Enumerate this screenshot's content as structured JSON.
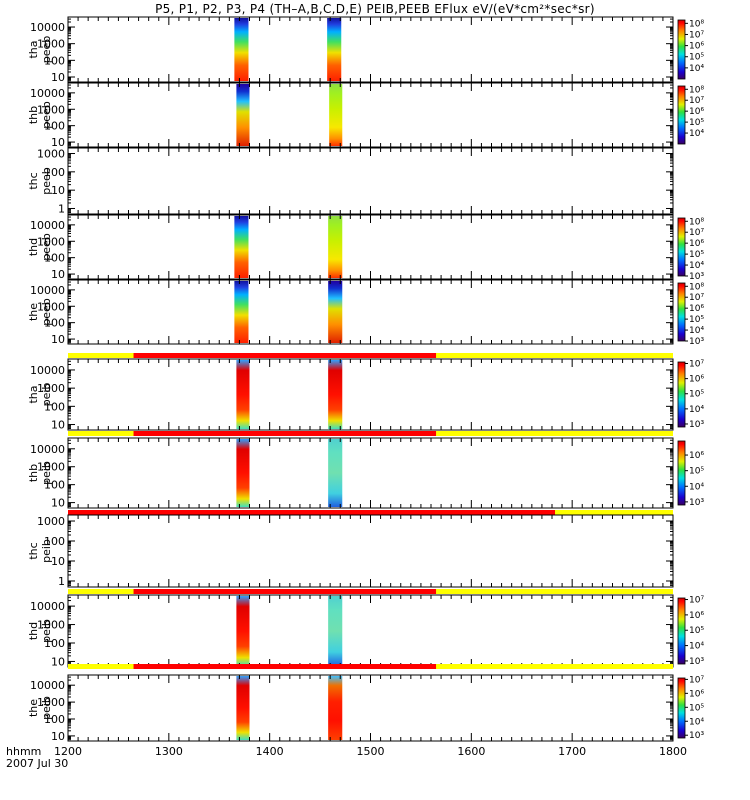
{
  "title": "P5, P1, P2, P3, P4 (TH–A,B,C,D,E) PEIB,PEEB EFlux eV/(eV*cm²*sec*sr)",
  "footer": {
    "hhmm_label": "hhmm",
    "date_label": "2007 Jul 30"
  },
  "colors": {
    "on": "#ff0000",
    "off": "#ffff00"
  },
  "chart_data": {
    "type": "heatmap",
    "xlabel": "hhmm",
    "xlim": [
      1200,
      1800
    ],
    "xticks": [
      1200,
      1300,
      1400,
      1500,
      1600,
      1700,
      1800
    ],
    "xtick_labels": [
      "1200",
      "1300",
      "1400",
      "1500",
      "1600",
      "1700",
      "1800"
    ],
    "panels": [
      {
        "id": "tha-peeb",
        "label_line1": "tha",
        "label_line2": "peeb",
        "ylim": [
          5,
          40000
        ],
        "ylog": true,
        "yticks": [
          10,
          100,
          1000,
          10000
        ],
        "ytick_labels": [
          "10",
          "100",
          "1000",
          "10000"
        ],
        "colorbar": {
          "range": [
            3,
            8.3
          ],
          "ticks": [
            4,
            5,
            6,
            7,
            8
          ],
          "labels": [
            "10⁴",
            "10⁵",
            "10⁶",
            "10⁷",
            "10⁸"
          ]
        },
        "blocks": [
          {
            "x0": 1365,
            "x1": 1379,
            "style": "warm"
          },
          {
            "x0": 1457,
            "x1": 1471,
            "style": "warm"
          }
        ]
      },
      {
        "id": "thb-peeb",
        "label_line1": "thb",
        "label_line2": "peeb",
        "ylim": [
          5,
          40000
        ],
        "ylog": true,
        "yticks": [
          10,
          100,
          1000,
          10000
        ],
        "ytick_labels": [
          "10",
          "100",
          "1000",
          "10000"
        ],
        "colorbar": {
          "range": [
            3,
            8.3
          ],
          "ticks": [
            4,
            5,
            6,
            7,
            8
          ],
          "labels": [
            "10⁴",
            "10⁵",
            "10⁶",
            "10⁷",
            "10⁸"
          ]
        },
        "blocks": [
          {
            "x0": 1367,
            "x1": 1380,
            "style": "mixed"
          },
          {
            "x0": 1459,
            "x1": 1472,
            "style": "yellow"
          }
        ]
      },
      {
        "id": "thc-peeb",
        "label_line1": "thc",
        "label_line2": "peeb",
        "ylim": [
          0.5,
          2000
        ],
        "ylog": true,
        "yticks": [
          1,
          10,
          100,
          1000
        ],
        "ytick_labels": [
          "1",
          "10",
          "100",
          "1000"
        ],
        "colorbar": null,
        "blocks": []
      },
      {
        "id": "thd-peeb",
        "label_line1": "thd",
        "label_line2": "peeb",
        "ylim": [
          5,
          40000
        ],
        "ylog": true,
        "yticks": [
          10,
          100,
          1000,
          10000
        ],
        "ytick_labels": [
          "10",
          "100",
          "1000",
          "10000"
        ],
        "colorbar": {
          "range": [
            3,
            8.3
          ],
          "ticks": [
            3,
            4,
            5,
            6,
            7,
            8
          ],
          "labels": [
            "10³",
            "10⁴",
            "10⁵",
            "10⁶",
            "10⁷",
            "10⁸"
          ]
        },
        "blocks": [
          {
            "x0": 1365,
            "x1": 1379,
            "style": "warm"
          },
          {
            "x0": 1458,
            "x1": 1472,
            "style": "yellow"
          }
        ]
      },
      {
        "id": "the-peeb",
        "label_line1": "the",
        "label_line2": "peeb",
        "ylim": [
          5,
          40000
        ],
        "ylog": true,
        "yticks": [
          10,
          100,
          1000,
          10000
        ],
        "ytick_labels": [
          "10",
          "100",
          "1000",
          "10000"
        ],
        "colorbar": {
          "range": [
            3,
            8.3
          ],
          "ticks": [
            3,
            4,
            5,
            6,
            7,
            8
          ],
          "labels": [
            "10³",
            "10⁴",
            "10⁵",
            "10⁶",
            "10⁷",
            "10⁸"
          ]
        },
        "blocks": [
          {
            "x0": 1365,
            "x1": 1379,
            "style": "warm"
          },
          {
            "x0": 1458,
            "x1": 1472,
            "style": "mixed"
          }
        ]
      },
      {
        "id": "tha-peib",
        "label_line1": "tha",
        "label_line2": "peib",
        "ylim": [
          5,
          40000
        ],
        "ylog": true,
        "yticks": [
          10,
          100,
          1000,
          10000
        ],
        "ytick_labels": [
          "10",
          "100",
          "1000",
          "10000"
        ],
        "colorbar": {
          "range": [
            2.8,
            7.1
          ],
          "ticks": [
            3,
            4,
            5,
            6,
            7
          ],
          "labels": [
            "10³",
            "10⁴",
            "10⁵",
            "10⁶",
            "10⁷"
          ]
        },
        "mode_bar": {
          "on_start": 1265,
          "on_end": 1565
        },
        "blocks": [
          {
            "x0": 1367,
            "x1": 1380,
            "style": "red"
          },
          {
            "x0": 1458,
            "x1": 1472,
            "style": "red"
          }
        ]
      },
      {
        "id": "thb-peib",
        "label_line1": "thb",
        "label_line2": "peib",
        "ylim": [
          5,
          40000
        ],
        "ylog": true,
        "yticks": [
          10,
          100,
          1000,
          10000
        ],
        "ytick_labels": [
          "10",
          "100",
          "1000",
          "10000"
        ],
        "colorbar": {
          "range": [
            2.8,
            6.9
          ],
          "ticks": [
            3,
            4,
            5,
            6
          ],
          "labels": [
            "10³",
            "10⁴",
            "10⁵",
            "10⁶"
          ]
        },
        "mode_bar": {
          "on_start": 1265,
          "on_end": 1565
        },
        "blocks": [
          {
            "x0": 1367,
            "x1": 1380,
            "style": "red"
          },
          {
            "x0": 1458,
            "x1": 1472,
            "style": "cyan"
          }
        ]
      },
      {
        "id": "thc-peib",
        "label_line1": "thc",
        "label_line2": "peib",
        "ylim": [
          0.5,
          2000
        ],
        "ylog": true,
        "yticks": [
          1,
          10,
          100,
          1000
        ],
        "ytick_labels": [
          "1",
          "10",
          "100",
          "1000"
        ],
        "colorbar": null,
        "mode_bar": {
          "on_start": 1200,
          "on_end": 1683
        },
        "blocks": []
      },
      {
        "id": "thd-peib",
        "label_line1": "thd",
        "label_line2": "peib",
        "ylim": [
          5,
          40000
        ],
        "ylog": true,
        "yticks": [
          10,
          100,
          1000,
          10000
        ],
        "ytick_labels": [
          "10",
          "100",
          "1000",
          "10000"
        ],
        "colorbar": {
          "range": [
            2.8,
            7.1
          ],
          "ticks": [
            3,
            4,
            5,
            6,
            7
          ],
          "labels": [
            "10³",
            "10⁴",
            "10⁵",
            "10⁶",
            "10⁷"
          ]
        },
        "mode_bar": {
          "on_start": 1265,
          "on_end": 1565
        },
        "blocks": [
          {
            "x0": 1367,
            "x1": 1380,
            "style": "red"
          },
          {
            "x0": 1458,
            "x1": 1472,
            "style": "cyan"
          }
        ]
      },
      {
        "id": "the-peib",
        "label_line1": "the",
        "label_line2": "peib",
        "ylim": [
          5,
          40000
        ],
        "ylog": true,
        "yticks": [
          10,
          100,
          1000,
          10000
        ],
        "ytick_labels": [
          "10",
          "100",
          "1000",
          "10000"
        ],
        "colorbar": {
          "range": [
            2.8,
            7.1
          ],
          "ticks": [
            3,
            4,
            5,
            6,
            7
          ],
          "labels": [
            "10³",
            "10⁴",
            "10⁵",
            "10⁶",
            "10⁷"
          ]
        },
        "mode_bar": {
          "on_start": 1265,
          "on_end": 1565
        },
        "blocks": [
          {
            "x0": 1367,
            "x1": 1380,
            "style": "red"
          },
          {
            "x0": 1458,
            "x1": 1472,
            "style": "cyanred"
          }
        ]
      }
    ]
  }
}
